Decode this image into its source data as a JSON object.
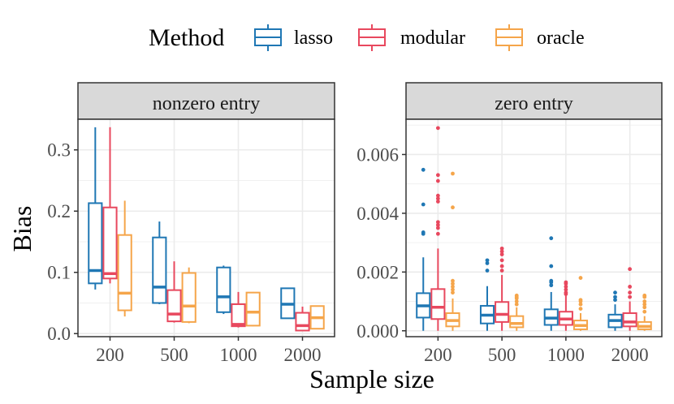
{
  "legend": {
    "title": "Method",
    "entries": [
      {
        "name": "lasso",
        "color": "#1F77B4"
      },
      {
        "name": "modular",
        "color": "#E8485E"
      },
      {
        "name": "oracle",
        "color": "#F5A54A"
      }
    ]
  },
  "axes": {
    "xlabel": "Sample size",
    "ylabel": "Bias"
  },
  "chart_data": [
    {
      "type": "box",
      "title": "nonzero entry",
      "categories": [
        "200",
        "500",
        "1000",
        "2000"
      ],
      "ylim": [
        -0.005,
        0.35
      ],
      "yticks": [
        0.0,
        0.1,
        0.2,
        0.3
      ],
      "ytick_labels": [
        "0.0",
        "0.1",
        "0.2",
        "0.3"
      ],
      "grid": true,
      "legend_position": "top",
      "series": [
        {
          "name": "lasso",
          "color": "#1F77B4",
          "boxes": [
            {
              "min": 0.072,
              "q1": 0.082,
              "median": 0.103,
              "q3": 0.213,
              "max": 0.337,
              "outliers": []
            },
            {
              "min": 0.048,
              "q1": 0.05,
              "median": 0.076,
              "q3": 0.157,
              "max": 0.183,
              "outliers": []
            },
            {
              "min": 0.032,
              "q1": 0.035,
              "median": 0.06,
              "q3": 0.108,
              "max": 0.111,
              "outliers": []
            },
            {
              "min": 0.025,
              "q1": 0.025,
              "median": 0.048,
              "q3": 0.074,
              "max": 0.074,
              "outliers": []
            }
          ]
        },
        {
          "name": "modular",
          "color": "#E8485E",
          "boxes": [
            {
              "min": 0.082,
              "q1": 0.09,
              "median": 0.098,
              "q3": 0.206,
              "max": 0.337,
              "outliers": []
            },
            {
              "min": 0.018,
              "q1": 0.02,
              "median": 0.032,
              "q3": 0.071,
              "max": 0.118,
              "outliers": []
            },
            {
              "min": 0.01,
              "q1": 0.012,
              "median": 0.015,
              "q3": 0.048,
              "max": 0.068,
              "outliers": []
            },
            {
              "min": 0.005,
              "q1": 0.005,
              "median": 0.013,
              "q3": 0.034,
              "max": 0.044,
              "outliers": []
            }
          ]
        },
        {
          "name": "oracle",
          "color": "#F5A54A",
          "boxes": [
            {
              "min": 0.028,
              "q1": 0.038,
              "median": 0.066,
              "q3": 0.161,
              "max": 0.217,
              "outliers": []
            },
            {
              "min": 0.017,
              "q1": 0.019,
              "median": 0.045,
              "q3": 0.099,
              "max": 0.108,
              "outliers": []
            },
            {
              "min": 0.012,
              "q1": 0.013,
              "median": 0.035,
              "q3": 0.067,
              "max": 0.068,
              "outliers": []
            },
            {
              "min": 0.008,
              "q1": 0.008,
              "median": 0.026,
              "q3": 0.045,
              "max": 0.045,
              "outliers": []
            }
          ]
        }
      ]
    },
    {
      "type": "box",
      "title": "zero entry",
      "categories": [
        "200",
        "500",
        "1000",
        "2000"
      ],
      "ylim": [
        -0.0002,
        0.0072
      ],
      "yticks": [
        0.0,
        0.002,
        0.004,
        0.006
      ],
      "ytick_labels": [
        "0.000",
        "0.002",
        "0.004",
        "0.006"
      ],
      "grid": true,
      "legend_position": "top",
      "series": [
        {
          "name": "lasso",
          "color": "#1F77B4",
          "boxes": [
            {
              "min": 0.0,
              "q1": 0.00045,
              "median": 0.00085,
              "q3": 0.00128,
              "max": 0.0025,
              "outliers": [
                0.0033,
                0.00335,
                0.0043,
                0.00548
              ]
            },
            {
              "min": 0.0,
              "q1": 0.00025,
              "median": 0.00053,
              "q3": 0.00085,
              "max": 0.00152,
              "outliers": [
                0.00205,
                0.0023,
                0.0024
              ]
            },
            {
              "min": 0.0,
              "q1": 0.0002,
              "median": 0.00043,
              "q3": 0.00073,
              "max": 0.00132,
              "outliers": [
                0.00155,
                0.00165,
                0.0017,
                0.0022,
                0.00315
              ]
            },
            {
              "min": 0.0,
              "q1": 0.00012,
              "median": 0.00035,
              "q3": 0.00055,
              "max": 0.0009,
              "outliers": [
                0.00105,
                0.00115,
                0.0013
              ]
            }
          ]
        },
        {
          "name": "modular",
          "color": "#E8485E",
          "boxes": [
            {
              "min": 0.0,
              "q1": 0.0004,
              "median": 0.0008,
              "q3": 0.00142,
              "max": 0.0028,
              "outliers": [
                0.0033,
                0.0035,
                0.0036,
                0.0037,
                0.0044,
                0.0045,
                0.0046,
                0.0051,
                0.0053,
                0.0069
              ]
            },
            {
              "min": 0.0,
              "q1": 0.0003,
              "median": 0.00056,
              "q3": 0.00098,
              "max": 0.0019,
              "outliers": [
                0.00205,
                0.0022,
                0.0024,
                0.0026,
                0.0027,
                0.0028
              ]
            },
            {
              "min": 0.0,
              "q1": 0.0002,
              "median": 0.0004,
              "q3": 0.00065,
              "max": 0.0012,
              "outliers": [
                0.00125,
                0.0013,
                0.0014,
                0.0015,
                0.0016,
                0.00165
              ]
            },
            {
              "min": 0.0,
              "q1": 0.00015,
              "median": 0.0003,
              "q3": 0.0006,
              "max": 0.001,
              "outliers": [
                0.00115,
                0.0013,
                0.0015,
                0.0021
              ]
            }
          ]
        },
        {
          "name": "oracle",
          "color": "#F5A54A",
          "boxes": [
            {
              "min": 0.0,
              "q1": 0.00015,
              "median": 0.00035,
              "q3": 0.0006,
              "max": 0.0011,
              "outliers": [
                0.0013,
                0.0014,
                0.0015,
                0.0016,
                0.0017,
                0.0042,
                0.00535
              ]
            },
            {
              "min": 0.0,
              "q1": 0.00012,
              "median": 0.00025,
              "q3": 0.0005,
              "max": 0.0008,
              "outliers": [
                0.0009,
                0.001,
                0.0011,
                0.00115,
                0.0012
              ]
            },
            {
              "min": 0.0,
              "q1": 5e-05,
              "median": 0.00018,
              "q3": 0.00035,
              "max": 0.0006,
              "outliers": [
                0.00075,
                0.0009,
                0.001,
                0.00105,
                0.0018
              ]
            },
            {
              "min": 0.0,
              "q1": 5e-05,
              "median": 0.00015,
              "q3": 0.0003,
              "max": 0.0005,
              "outliers": [
                0.00065,
                0.0008,
                0.0009,
                0.001,
                0.00115,
                0.0012
              ]
            }
          ]
        }
      ]
    }
  ]
}
